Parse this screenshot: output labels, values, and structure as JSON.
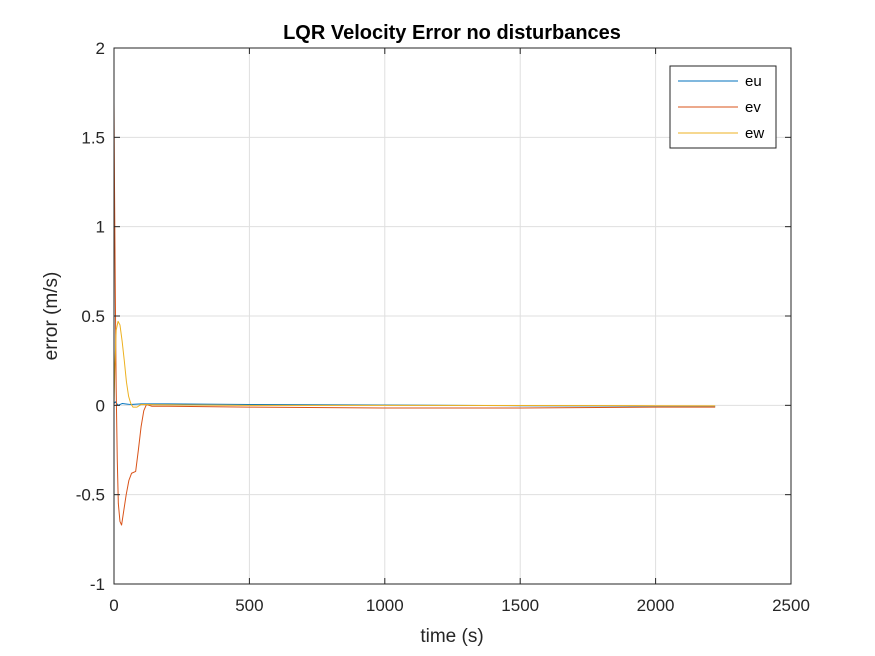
{
  "chart_data": {
    "type": "line",
    "title": "LQR Velocity Error no disturbances",
    "xlabel": "time (s)",
    "ylabel": "error (m/s)",
    "xlim": [
      0,
      2500
    ],
    "ylim": [
      -1,
      2
    ],
    "xticks": [
      0,
      500,
      1000,
      1500,
      2000,
      2500
    ],
    "yticks": [
      -1,
      -0.5,
      0,
      0.5,
      1,
      1.5,
      2
    ],
    "xtick_labels": [
      "0",
      "500",
      "1000",
      "1500",
      "2000",
      "2500"
    ],
    "ytick_labels": [
      "-1",
      "-0.5",
      "0",
      "0.5",
      "1",
      "1.5",
      "2"
    ],
    "grid": true,
    "legend_position": "top-right",
    "series": [
      {
        "name": "eu",
        "color": "#0072BD",
        "points": [
          [
            0,
            0.01
          ],
          [
            5,
            0.02
          ],
          [
            15,
            0.0
          ],
          [
            30,
            0.01
          ],
          [
            60,
            0.005
          ],
          [
            100,
            0.008
          ],
          [
            200,
            0.008
          ],
          [
            500,
            0.005
          ],
          [
            1000,
            0.002
          ],
          [
            1500,
            -0.002
          ],
          [
            2000,
            -0.004
          ],
          [
            2220,
            -0.005
          ]
        ]
      },
      {
        "name": "ev",
        "color": "#D95319",
        "points": [
          [
            0,
            1.7
          ],
          [
            2,
            1.2
          ],
          [
            5,
            0.6
          ],
          [
            8,
            0.1
          ],
          [
            12,
            -0.3
          ],
          [
            16,
            -0.55
          ],
          [
            22,
            -0.65
          ],
          [
            28,
            -0.67
          ],
          [
            35,
            -0.6
          ],
          [
            45,
            -0.5
          ],
          [
            55,
            -0.42
          ],
          [
            65,
            -0.38
          ],
          [
            80,
            -0.37
          ],
          [
            90,
            -0.25
          ],
          [
            100,
            -0.12
          ],
          [
            110,
            -0.03
          ],
          [
            120,
            0.005
          ],
          [
            140,
            -0.005
          ],
          [
            200,
            -0.005
          ],
          [
            500,
            -0.01
          ],
          [
            1000,
            -0.015
          ],
          [
            1500,
            -0.015
          ],
          [
            2000,
            -0.01
          ],
          [
            2220,
            -0.01
          ]
        ]
      },
      {
        "name": "ew",
        "color": "#EDB120",
        "points": [
          [
            0,
            0.0
          ],
          [
            3,
            0.2
          ],
          [
            8,
            0.42
          ],
          [
            15,
            0.47
          ],
          [
            22,
            0.45
          ],
          [
            30,
            0.36
          ],
          [
            38,
            0.25
          ],
          [
            46,
            0.13
          ],
          [
            54,
            0.05
          ],
          [
            62,
            0.01
          ],
          [
            70,
            -0.01
          ],
          [
            85,
            -0.01
          ],
          [
            100,
            0.005
          ],
          [
            150,
            0.003
          ],
          [
            500,
            0.0
          ],
          [
            1000,
            0.0
          ],
          [
            2000,
            -0.002
          ],
          [
            2220,
            -0.003
          ]
        ]
      }
    ],
    "wiggle_note": ""
  }
}
